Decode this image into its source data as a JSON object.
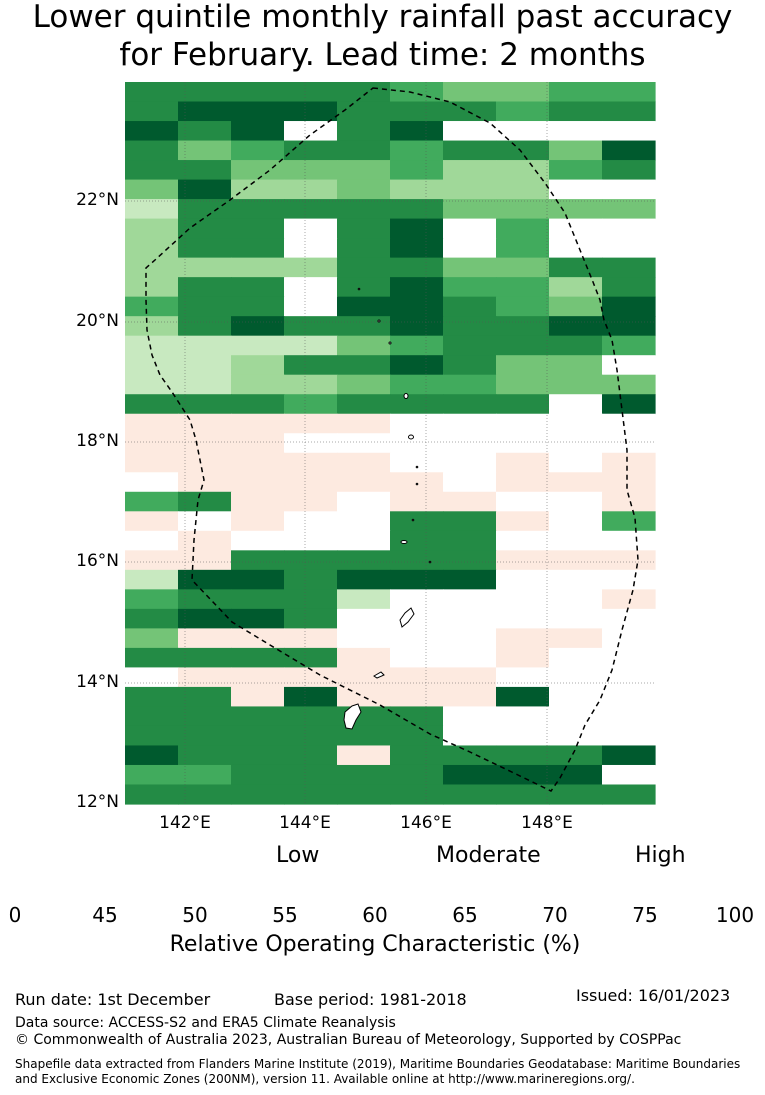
{
  "title": {
    "line1": "Lower quintile monthly rainfall past accuracy",
    "line2": "for February. Lead time: 2 months"
  },
  "map": {
    "lat_range": [
      12,
      24
    ],
    "lon_range": [
      141,
      149.8
    ],
    "y_axis_labels": [
      "22°N",
      "20°N",
      "18°N",
      "16°N",
      "14°N",
      "12°N"
    ],
    "x_axis_labels": [
      "142°E",
      "144°E",
      "146°E",
      "148°E"
    ],
    "grid_rows": [
      "2223245544",
      "3111323422",
      "1210210000",
      "3542243351",
      "2355546642",
      "5166566600",
      "7332335555",
      "6320310400",
      "6320310400",
      "6666325522",
      "6320314463",
      "4220112451",
      "6313312211",
      "7777543334",
      "7762212550",
      "7766544555",
      "2324222201",
      "8888800000",
      "8880000000",
      "8888800808",
      "0888880888",
      "4388988008",
      "8080033804",
      "0800022000",
      "8822222888",
      "7113111999",
      "4222799008",
      "2112000000",
      "5888990880",
      "3322800890",
      "0888888999",
      "3381888199",
      "3333330000",
      "3322230000",
      "1322833331",
      "4433331110",
      "3333333333"
    ],
    "palette_note": "0=white,8=peach,9=white,1..7 greens"
  },
  "colorbar": {
    "categories": [
      "Low",
      "Moderate",
      "High"
    ],
    "ticks": [
      "0",
      "45",
      "50",
      "55",
      "60",
      "65",
      "70",
      "75",
      "100"
    ],
    "colors": [
      "#ffffff",
      "#fdeae0",
      "#c8e9c0",
      "#a0d899",
      "#74c477",
      "#41ab5d",
      "#238b45",
      "#005a2e"
    ],
    "label": "Relative Operating Characteristic (%)"
  },
  "footer": {
    "run_date": "Run date: 1st December",
    "base_period": "Base period: 1981-2018",
    "issued": "Issued: 16/01/2023",
    "data_source": "Data source: ACCESS-S2 and ERA5 Climate Reanalysis",
    "copyright": "© Commonwealth of Australia 2023, Australian Bureau of Meteorology, Supported by COSPPac",
    "shapefile": "Shapefile data extracted from Flanders Marine Institute (2019), Maritime Boundaries Geodatabase: Maritime Boundaries and Exclusive Economic Zones (200NM), version 11. Available online at http://www.marineregions.org/."
  }
}
